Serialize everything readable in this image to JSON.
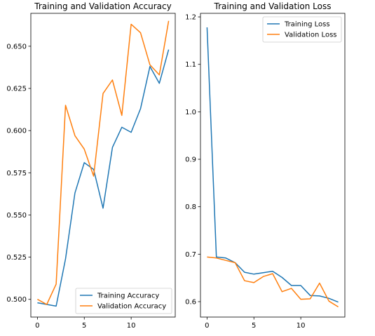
{
  "chart_data": [
    {
      "type": "line",
      "title": "Training and Validation Accuracy",
      "xlabel": "",
      "ylabel": "",
      "xlim": [
        -0.7,
        14.7
      ],
      "ylim": [
        0.4895,
        0.6695
      ],
      "xticks": [
        0,
        5,
        10
      ],
      "yticks": [
        0.5,
        0.525,
        0.55,
        0.575,
        0.6,
        0.625,
        0.65
      ],
      "ytick_labels": [
        "0.500",
        "0.525",
        "0.550",
        "0.575",
        "0.600",
        "0.625",
        "0.650"
      ],
      "legend_loc": "lower-right",
      "x": [
        0,
        1,
        2,
        3,
        4,
        5,
        6,
        7,
        8,
        9,
        10,
        11,
        12,
        13,
        14
      ],
      "series": [
        {
          "name": "Training Accuracy",
          "color": "#1f77b4",
          "values": [
            0.498,
            0.497,
            0.496,
            0.524,
            0.563,
            0.581,
            0.577,
            0.554,
            0.59,
            0.602,
            0.599,
            0.613,
            0.638,
            0.628,
            0.648
          ]
        },
        {
          "name": "Validation Accuracy",
          "color": "#ff7f0e",
          "values": [
            0.5,
            0.497,
            0.509,
            0.615,
            0.597,
            0.589,
            0.573,
            0.622,
            0.63,
            0.609,
            0.663,
            0.658,
            0.639,
            0.633,
            0.665
          ]
        }
      ]
    },
    {
      "type": "line",
      "title": "Training and Validation Loss",
      "xlabel": "",
      "ylabel": "",
      "xlim": [
        -0.7,
        14.7
      ],
      "ylim": [
        0.5675,
        1.2075
      ],
      "xticks": [
        0,
        5,
        10
      ],
      "yticks": [
        0.6,
        0.7,
        0.8,
        0.9,
        1.0,
        1.1,
        1.2
      ],
      "ytick_labels": [
        "0.6",
        "0.7",
        "0.8",
        "0.9",
        "1.0",
        "1.1",
        "1.2"
      ],
      "legend_loc": "upper-right",
      "x": [
        0,
        1,
        2,
        3,
        4,
        5,
        6,
        7,
        8,
        9,
        10,
        11,
        12,
        13,
        14
      ],
      "series": [
        {
          "name": "Training Loss",
          "color": "#1f77b4",
          "values": [
            1.178,
            0.694,
            0.692,
            0.682,
            0.662,
            0.658,
            0.661,
            0.664,
            0.651,
            0.634,
            0.634,
            0.613,
            0.612,
            0.607,
            0.599
          ]
        },
        {
          "name": "Validation Loss",
          "color": "#ff7f0e",
          "values": [
            0.694,
            0.692,
            0.687,
            0.682,
            0.644,
            0.64,
            0.653,
            0.659,
            0.621,
            0.628,
            0.605,
            0.606,
            0.639,
            0.601,
            0.589
          ]
        }
      ]
    }
  ]
}
